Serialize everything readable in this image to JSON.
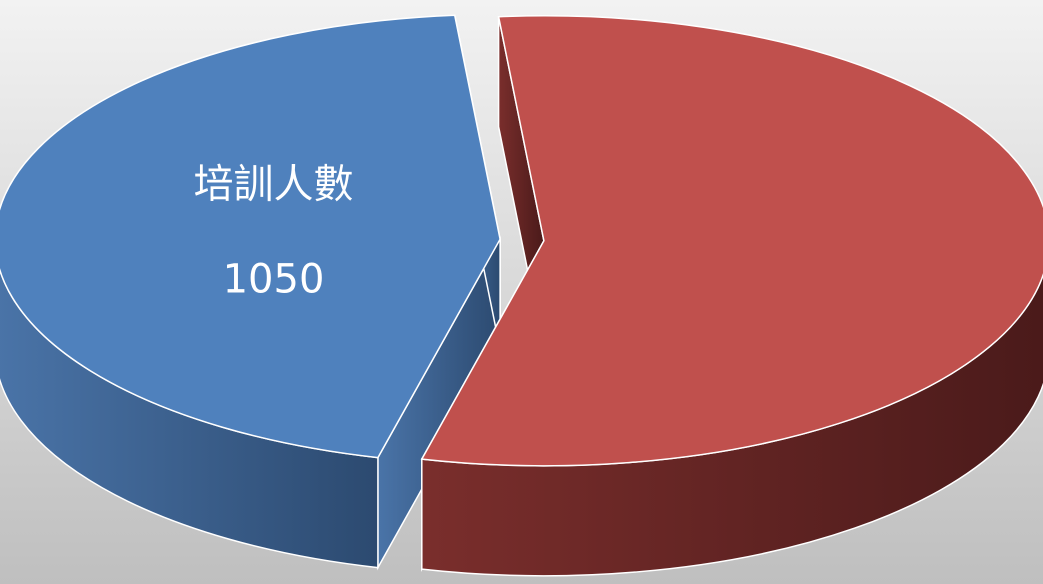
{
  "chart_data": {
    "type": "pie",
    "categories": [
      "培訓人數",
      null
    ],
    "values": [
      1050,
      1300
    ],
    "colors": [
      "#4f81bd",
      "#c0504d"
    ],
    "three_d": true,
    "exploded": true
  }
}
